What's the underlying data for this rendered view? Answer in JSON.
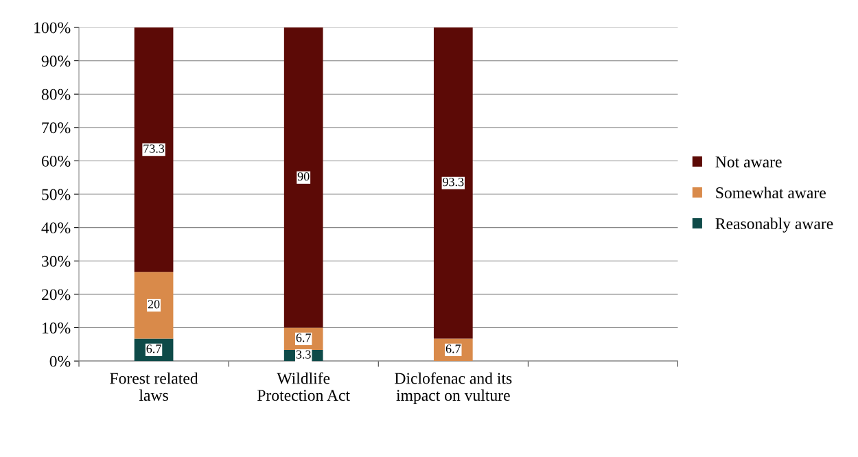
{
  "chart_data": {
    "type": "bar",
    "stacked": true,
    "categories": [
      "Forest related\nlaws",
      "Wildlife\nProtection Act",
      "Diclofenac and its\nimpact on vulture",
      null
    ],
    "series": [
      {
        "name": "Reasonably aware",
        "color": "#0e4a48",
        "values": [
          6.7,
          3.3,
          0,
          null
        ],
        "value_labels": [
          "6.7",
          "3.3",
          null,
          null
        ]
      },
      {
        "name": "Somewhat aware",
        "color": "#d98a4a",
        "values": [
          20,
          6.7,
          6.7,
          null
        ],
        "value_labels": [
          "20",
          "6.7",
          "6.7",
          null
        ]
      },
      {
        "name": "Not aware",
        "color": "#5c0a06",
        "values": [
          73.3,
          90,
          93.3,
          null
        ],
        "value_labels": [
          "73.3",
          "90",
          "93.3",
          null
        ]
      }
    ],
    "ylim": [
      0,
      100
    ],
    "yticks": [
      {
        "value": 0,
        "label": "0%"
      },
      {
        "value": 10,
        "label": "10%"
      },
      {
        "value": 20,
        "label": "20%"
      },
      {
        "value": 30,
        "label": "30%"
      },
      {
        "value": 40,
        "label": "40%"
      },
      {
        "value": 50,
        "label": "50%"
      },
      {
        "value": 60,
        "label": "60%"
      },
      {
        "value": 70,
        "label": "70%"
      },
      {
        "value": 80,
        "label": "80%"
      },
      {
        "value": 90,
        "label": "90%"
      },
      {
        "value": 100,
        "label": "100%"
      }
    ],
    "grid": "y",
    "legend": "right"
  }
}
